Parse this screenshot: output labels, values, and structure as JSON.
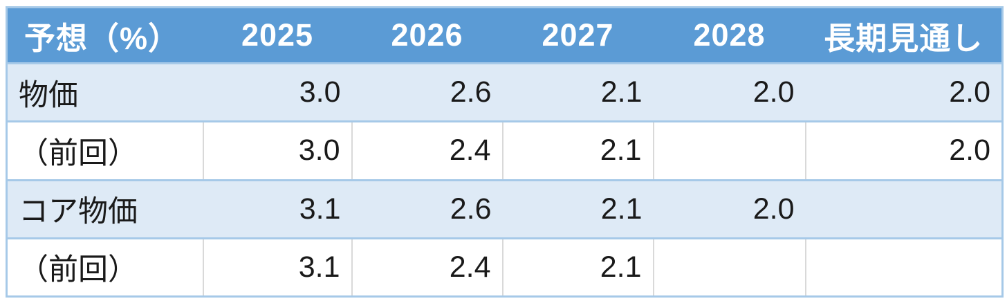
{
  "colors": {
    "header_bg": "#5b9bd5",
    "header_text": "#ffffff",
    "band_row_bg": "#deeaf6",
    "plain_row_bg": "#ffffff",
    "row_separator": "#a6c9e8",
    "inner_grid": "#d9d9d9",
    "body_text": "#1a1a1a"
  },
  "table": {
    "columns": [
      "予想（%）",
      "2025",
      "2026",
      "2027",
      "2028",
      "長期見通し"
    ],
    "rows": [
      {
        "label": "物価",
        "values": [
          "3.0",
          "2.6",
          "2.1",
          "2.0",
          "2.0"
        ]
      },
      {
        "label": "（前回）",
        "values": [
          "3.0",
          "2.4",
          "2.1",
          "",
          "2.0"
        ]
      },
      {
        "label": "コア物価",
        "values": [
          "3.1",
          "2.6",
          "2.1",
          "2.0",
          ""
        ]
      },
      {
        "label": "（前回）",
        "values": [
          "3.1",
          "2.4",
          "2.1",
          "",
          ""
        ]
      }
    ]
  },
  "chart_data": {
    "type": "table",
    "title": "予想（%）",
    "columns": [
      "予想（%）",
      "2025",
      "2026",
      "2027",
      "2028",
      "長期見通し"
    ],
    "rows": [
      [
        "物価",
        "3.0",
        "2.6",
        "2.1",
        "2.0",
        "2.0"
      ],
      [
        "（前回）",
        "3.0",
        "2.4",
        "2.1",
        "",
        "2.0"
      ],
      [
        "コア物価",
        "3.1",
        "2.6",
        "2.1",
        "2.0",
        ""
      ],
      [
        "（前回）",
        "3.1",
        "2.4",
        "2.1",
        "",
        ""
      ]
    ]
  }
}
